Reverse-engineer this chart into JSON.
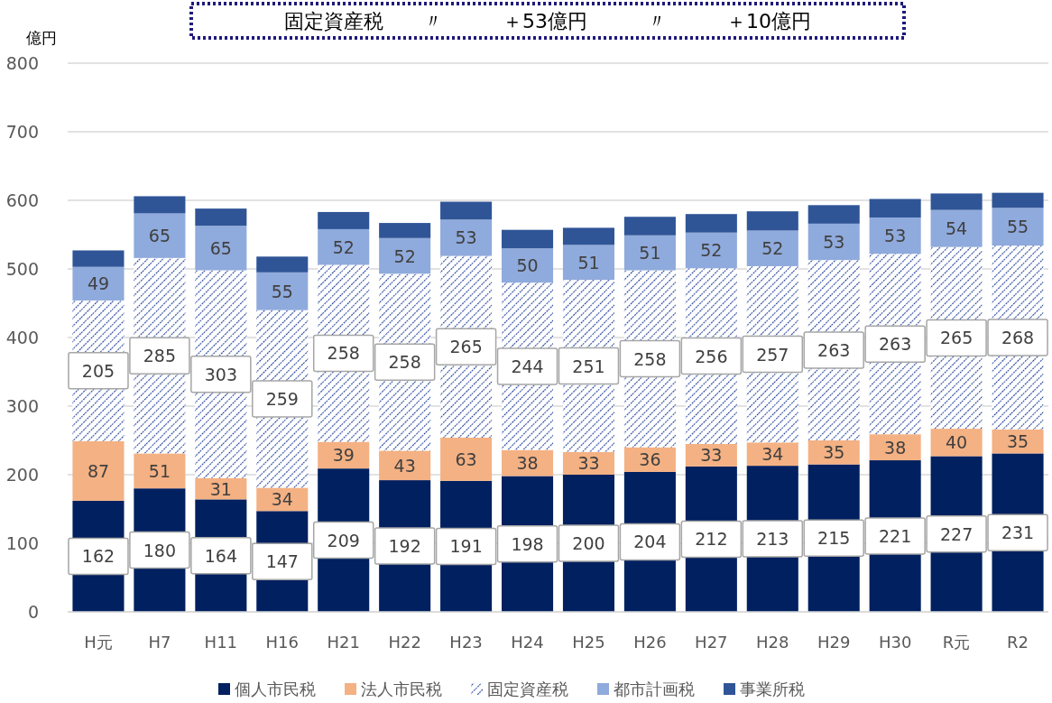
{
  "chart_data": {
    "type": "bar",
    "stacked": true,
    "ylabel": "億円",
    "annotations": [
      "固定資産税　　〃　　　＋53億円　　　〃　　　＋10億円"
    ],
    "categories": [
      "H元",
      "H7",
      "H11",
      "H16",
      "H21",
      "H22",
      "H23",
      "H24",
      "H25",
      "H26",
      "H27",
      "H28",
      "H29",
      "H30",
      "R元",
      "R2"
    ],
    "series": [
      {
        "name": "個人市民税",
        "color": "#002060",
        "values": [
          162,
          180,
          164,
          147,
          209,
          192,
          191,
          198,
          200,
          204,
          212,
          213,
          215,
          221,
          227,
          231
        ],
        "value_labels": [
          "162",
          "180",
          "164",
          "147",
          "209",
          "192",
          "191",
          "198",
          "200",
          "204",
          "212",
          "213",
          "215",
          "221",
          "227",
          "231"
        ]
      },
      {
        "name": "法人市民税",
        "color": "#f4b183",
        "values": [
          87,
          51,
          31,
          34,
          39,
          43,
          63,
          38,
          33,
          36,
          33,
          34,
          35,
          38,
          40,
          35
        ],
        "value_labels": [
          "87",
          "51",
          "31",
          "34",
          "39",
          "43",
          "63",
          "38",
          "33",
          "36",
          "33",
          "34",
          "35",
          "38",
          "40",
          "35"
        ]
      },
      {
        "name": "固定資産税",
        "color": "#203f9a",
        "values": [
          205,
          285,
          303,
          259,
          258,
          258,
          265,
          244,
          251,
          258,
          256,
          257,
          263,
          263,
          265,
          268
        ],
        "value_labels": [
          "205",
          "285",
          "303",
          "259",
          "258",
          "258",
          "265",
          "244",
          "251",
          "258",
          "256",
          "257",
          "263",
          "263",
          "265",
          "268"
        ]
      },
      {
        "name": "都市計画税",
        "color": "#8faadc",
        "values": [
          49,
          65,
          65,
          55,
          52,
          52,
          53,
          50,
          51,
          51,
          52,
          52,
          53,
          53,
          54,
          55
        ],
        "value_labels": [
          "49",
          "65",
          "65",
          "55",
          "52",
          "52",
          "53",
          "50",
          "51",
          "51",
          "52",
          "52",
          "53",
          "53",
          "54",
          "55"
        ]
      },
      {
        "name": "事業所税",
        "color": "#2f5597",
        "values": [
          24,
          25,
          25,
          23,
          25,
          22,
          26,
          27,
          25,
          27,
          27,
          28,
          27,
          27,
          24,
          22
        ]
      }
    ],
    "ylim": [
      0,
      800
    ],
    "yticks": [
      0,
      100,
      200,
      300,
      400,
      500,
      600,
      700,
      800
    ],
    "grid": "y",
    "legend": "bottom"
  }
}
